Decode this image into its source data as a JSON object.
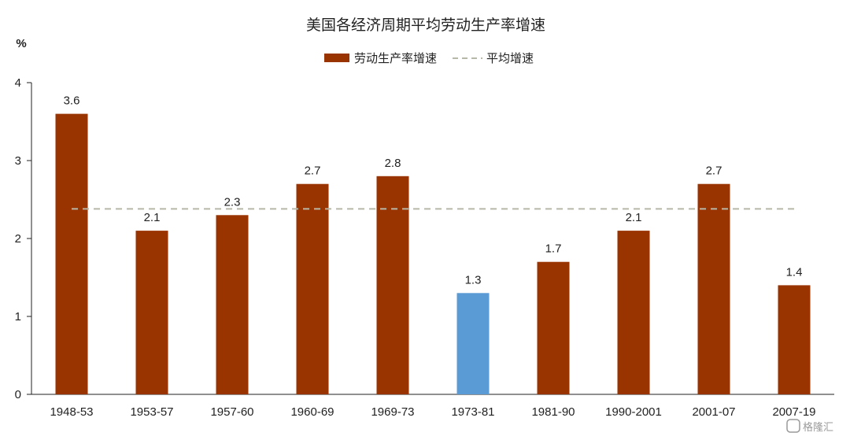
{
  "chart_data": {
    "type": "bar",
    "title": "美国各经济周期平均劳动生产率增速",
    "unit": "%",
    "categories": [
      "1948-53",
      "1953-57",
      "1957-60",
      "1960-69",
      "1969-73",
      "1973-81",
      "1981-90",
      "1990-2001",
      "2001-07",
      "2007-19"
    ],
    "series": [
      {
        "name": "劳动生产率增速",
        "values": [
          3.6,
          2.1,
          2.3,
          2.7,
          2.8,
          1.3,
          1.7,
          2.1,
          2.7,
          1.4
        ],
        "data_labels": [
          "3.6",
          "2.1",
          "2.3",
          "2.7",
          "2.8",
          "1.3",
          "1.7",
          "2.1",
          "2.7",
          "1.4"
        ],
        "color": "#993300",
        "highlight_index": 5,
        "highlight_color": "#5b9bd5"
      },
      {
        "name": "平均增速",
        "type": "line",
        "style": "dashed",
        "value": 2.38,
        "color": "#b8b8a8"
      }
    ],
    "y_ticks": [
      "0",
      "1",
      "2",
      "3",
      "4"
    ],
    "ylim": [
      0,
      4
    ],
    "grid": false,
    "legend_position": "top-center"
  },
  "watermark": "格隆汇"
}
